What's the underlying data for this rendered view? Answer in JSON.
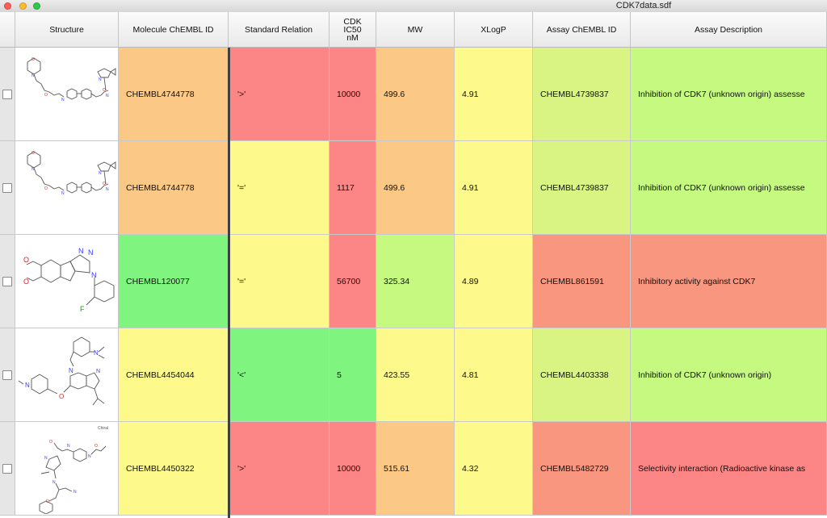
{
  "window": {
    "title": "CDK7data.sdf"
  },
  "columns": {
    "structure": "Structure",
    "molecule_id": "Molecule ChEMBL ID",
    "relation": "Standard Relation",
    "ic50_line1": "CDK",
    "ic50_line2": "IC50",
    "ic50_line3": "nM",
    "mw": "MW",
    "xlogp": "XLogP",
    "assay_id": "Assay ChEMBL ID",
    "assay_desc": "Assay Description"
  },
  "colors": {
    "red": "#fc8585",
    "orange": "#fbc886",
    "yellow": "#fdf98a",
    "yellowgreen": "#d9f482",
    "lightgreen": "#c5f97f",
    "green": "#7ff57f",
    "salmon": "#f99680"
  },
  "rows": [
    {
      "molecule_id": "CHEMBL4744778",
      "relation": "'>'",
      "ic50": "10000",
      "mw": "499.6",
      "xlogp": "4.91",
      "assay_id": "CHEMBL4739837",
      "assay_desc": "Inhibition of CDK7 (unknown origin) assesse",
      "structure_icon": "molecule-structure-1-icon"
    },
    {
      "molecule_id": "CHEMBL4744778",
      "relation": "'='",
      "ic50": "1117",
      "mw": "499.6",
      "xlogp": "4.91",
      "assay_id": "CHEMBL4739837",
      "assay_desc": "Inhibition of CDK7 (unknown origin) assesse",
      "structure_icon": "molecule-structure-2-icon"
    },
    {
      "molecule_id": "CHEMBL120077",
      "relation": "'='",
      "ic50": "56700",
      "mw": "325.34",
      "xlogp": "4.89",
      "assay_id": "CHEMBL861591",
      "assay_desc": "Inhibitory activity against CDK7",
      "structure_icon": "molecule-structure-3-icon"
    },
    {
      "molecule_id": "CHEMBL4454044",
      "relation": "'<'",
      "ic50": "5",
      "mw": "423.55",
      "xlogp": "4.81",
      "assay_id": "CHEMBL4403338",
      "assay_desc": "Inhibition of CDK7 (unknown origin)",
      "structure_icon": "molecule-structure-4-icon"
    },
    {
      "molecule_id": "CHEMBL4450322",
      "relation": "'>'",
      "ic50": "10000",
      "mw": "515.61",
      "xlogp": "4.32",
      "assay_id": "CHEMBL5482729",
      "assay_desc": "Selectivity interaction (Radioactive kinase as",
      "structure_icon": "molecule-structure-5-icon",
      "structure_tag": "Chiral"
    }
  ]
}
